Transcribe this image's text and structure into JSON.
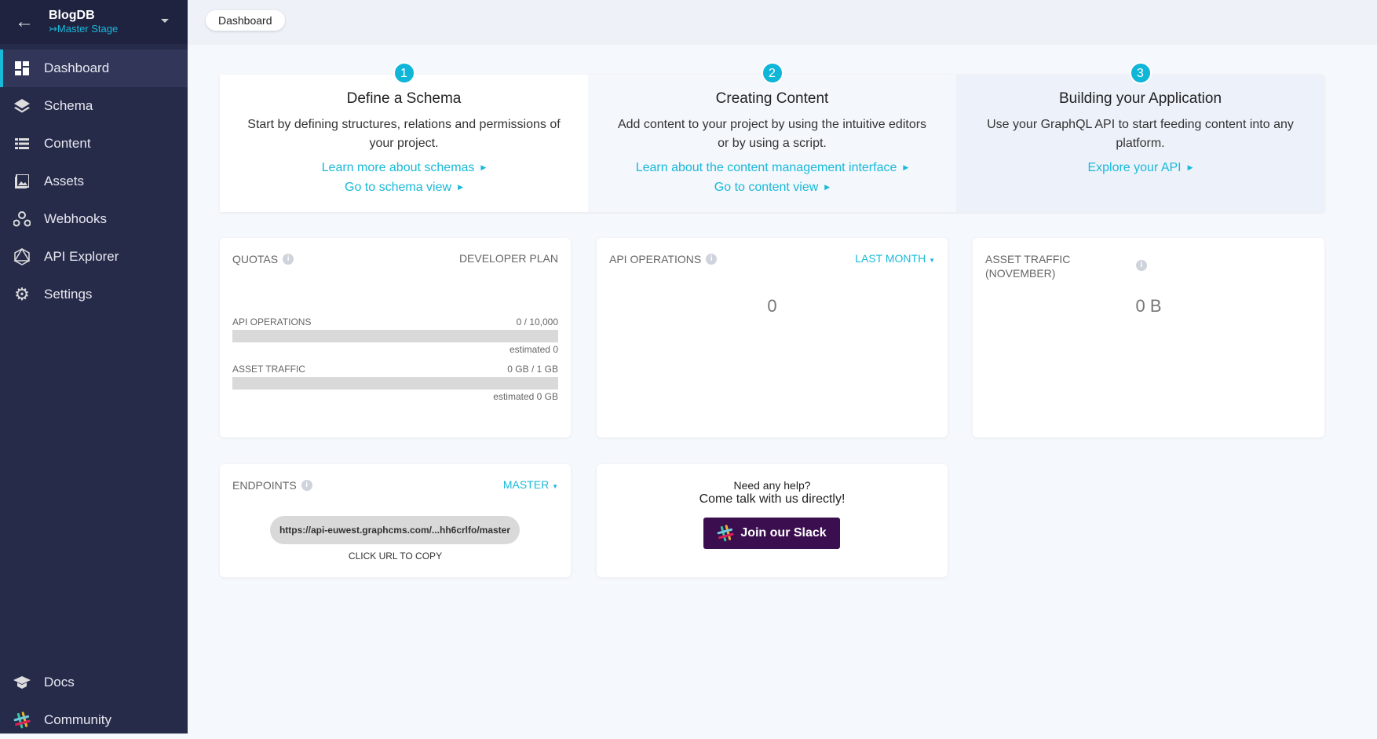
{
  "sidebar": {
    "project": "BlogDB",
    "stage": "Master Stage",
    "items": [
      {
        "label": "Dashboard",
        "icon": "dashboard-icon"
      },
      {
        "label": "Schema",
        "icon": "layers-icon"
      },
      {
        "label": "Content",
        "icon": "list-icon"
      },
      {
        "label": "Assets",
        "icon": "image-icon"
      },
      {
        "label": "Webhooks",
        "icon": "webhook-icon"
      },
      {
        "label": "API Explorer",
        "icon": "graphql-icon"
      },
      {
        "label": "Settings",
        "icon": "gear-icon"
      }
    ],
    "bottom": [
      {
        "label": "Docs",
        "icon": "graduation-cap-icon"
      },
      {
        "label": "Community",
        "icon": "slack-icon"
      }
    ]
  },
  "header": {
    "breadcrumb": "Dashboard"
  },
  "steps": [
    {
      "num": "1",
      "title": "Define a Schema",
      "body": "Start by defining structures, relations and permissions of your project.",
      "links": [
        "Learn more about schemas",
        "Go to schema view"
      ]
    },
    {
      "num": "2",
      "title": "Creating Content",
      "body": "Add content to your project by using the intuitive editors or by using a script.",
      "links": [
        "Learn about the content management interface",
        "Go to content view"
      ]
    },
    {
      "num": "3",
      "title": "Building your Application",
      "body": "Use your GraphQL API to start feeding content into any platform.",
      "links": [
        "Explore your API"
      ]
    }
  ],
  "quotas": {
    "title": "QUOTAS",
    "plan": "DEVELOPER PLAN",
    "api_label": "API OPERATIONS",
    "api_value": "0 / 10,000",
    "api_estimated": "estimated 0",
    "api_fill": 0,
    "asset_label": "ASSET TRAFFIC",
    "asset_value": "0 GB / 1 GB",
    "asset_estimated": "estimated 0 GB",
    "asset_fill": 0
  },
  "api_ops": {
    "title": "API OPERATIONS",
    "range": "LAST MONTH",
    "value": "0"
  },
  "asset_traffic": {
    "title": "ASSET TRAFFIC (NOVEMBER)",
    "value": "0 B"
  },
  "endpoints": {
    "title": "ENDPOINTS",
    "stage": "MASTER",
    "url": "https://api-euwest.graphcms.com/...hh6crlfo/master",
    "hint": "CLICK URL TO COPY"
  },
  "help": {
    "line1": "Need any help?",
    "line2": "Come talk with us directly!",
    "button": "Join our Slack"
  },
  "colors": {
    "accent": "#19b9d9",
    "sidebar": "#272b4a",
    "slack": "#3b0f4f"
  }
}
